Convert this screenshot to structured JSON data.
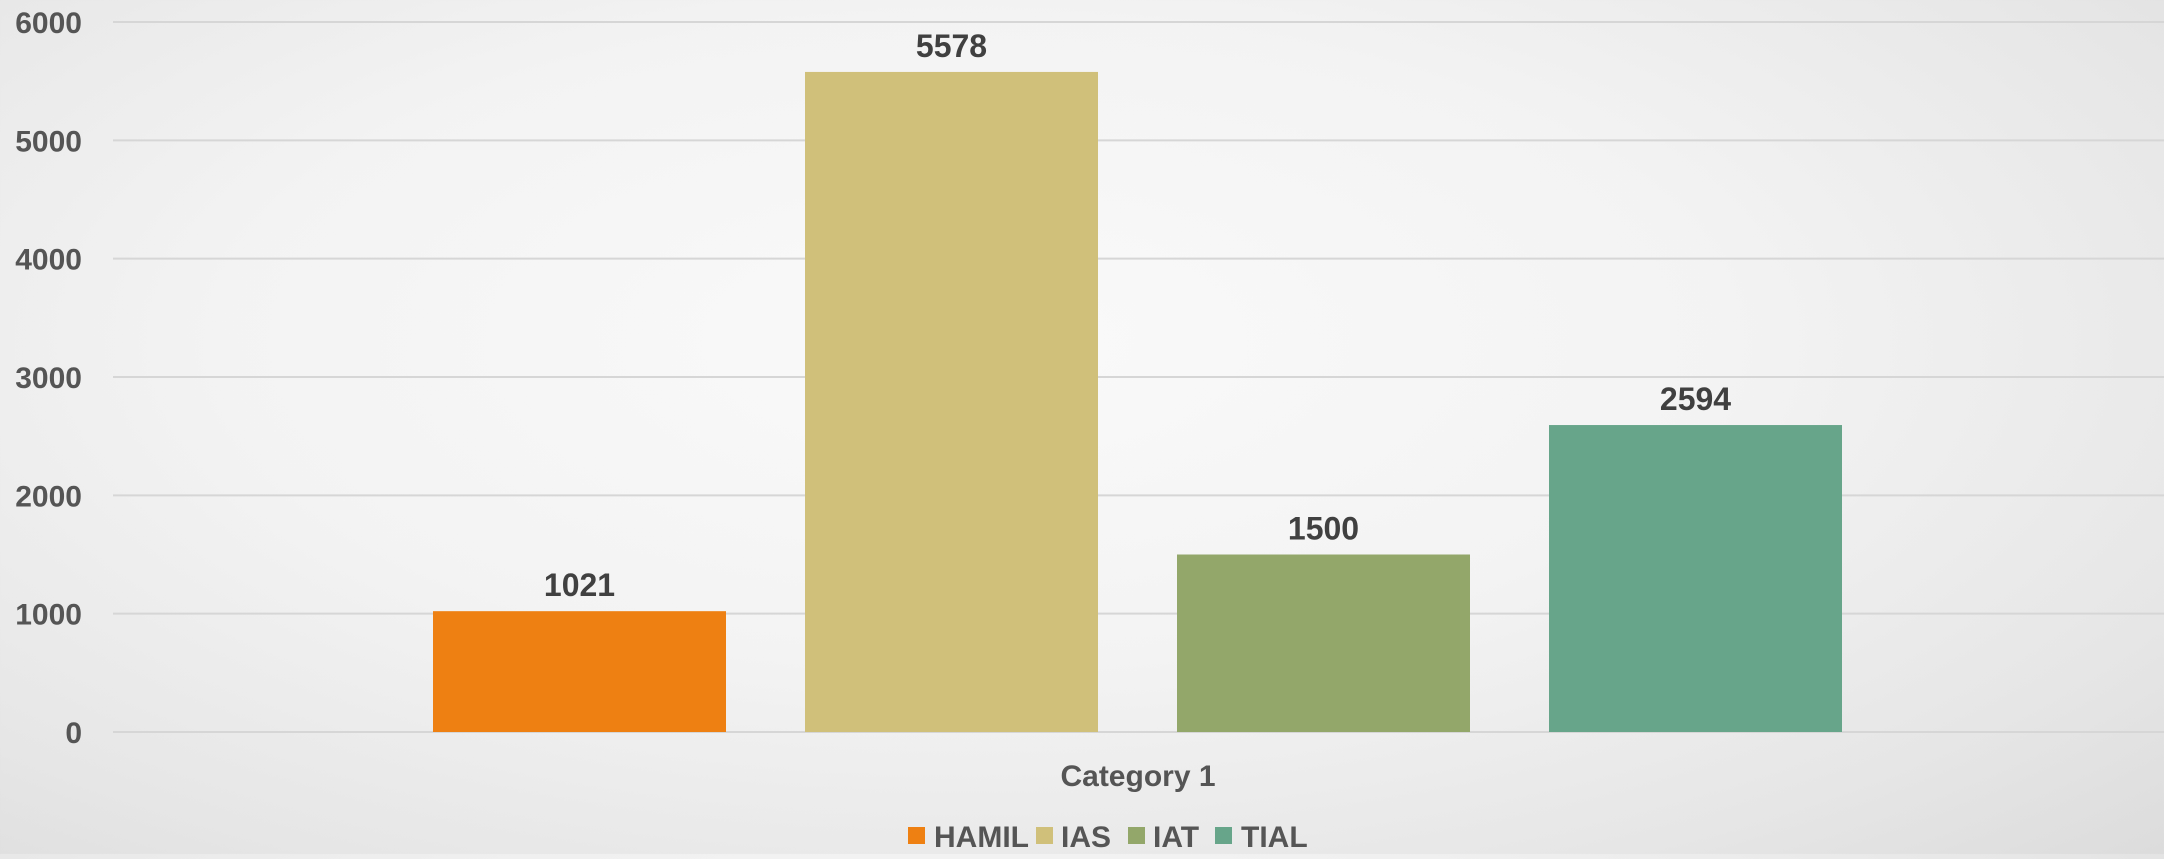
{
  "chart_data": {
    "type": "bar",
    "categories": [
      "Category 1"
    ],
    "series": [
      {
        "name": "HAMIL",
        "values": [
          1021
        ],
        "color": "#EE8012"
      },
      {
        "name": "IAS",
        "values": [
          5578
        ],
        "color": "#D0C07A"
      },
      {
        "name": "IAT",
        "values": [
          1500
        ],
        "color": "#93A76A"
      },
      {
        "name": "TIAL",
        "values": [
          2594
        ],
        "color": "#67A58A"
      }
    ],
    "y_ticks": [
      "0",
      "1000",
      "2000",
      "3000",
      "4000",
      "5000",
      "6000"
    ],
    "ylim": [
      0,
      6000
    ],
    "grid": true,
    "legend_position": "bottom",
    "data_labels": true
  }
}
